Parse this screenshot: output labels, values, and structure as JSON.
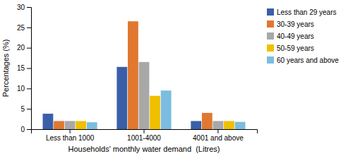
{
  "chart_data": {
    "type": "bar",
    "categories": [
      "Less than 1000",
      "1001-4000",
      "4001 and above"
    ],
    "series": [
      {
        "name": "Less than 29 years",
        "color": "#3A5FA8",
        "values": [
          3.8,
          15.3,
          2.0
        ]
      },
      {
        "name": "30-39 years",
        "color": "#E07830",
        "values": [
          2.0,
          26.5,
          4.0
        ]
      },
      {
        "name": "40-49 years",
        "color": "#A8A8A8",
        "values": [
          2.0,
          16.5,
          2.0
        ]
      },
      {
        "name": "50-59 years",
        "color": "#F0C000",
        "values": [
          2.0,
          8.2,
          2.0
        ]
      },
      {
        "name": "60 years and above",
        "color": "#7BBDE0",
        "values": [
          1.7,
          9.5,
          1.8
        ]
      }
    ],
    "xlabel": "Households' monthly water demand  (Litres)",
    "ylabel": "Percentages (%)",
    "ylim": [
      0,
      30
    ],
    "yticks": [
      0,
      5,
      10,
      15,
      20,
      25,
      30
    ],
    "grid": false,
    "legend": "right"
  }
}
